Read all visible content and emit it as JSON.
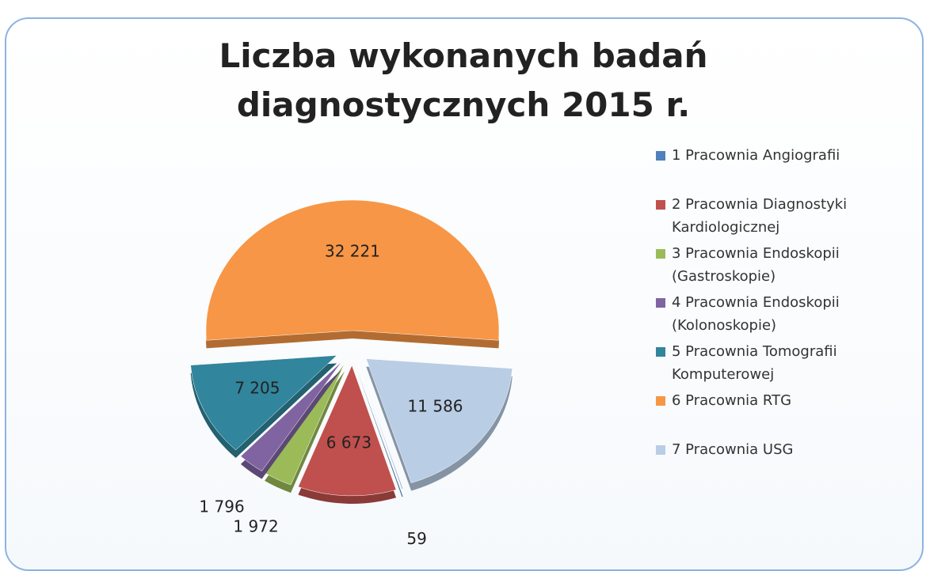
{
  "chart_data": {
    "type": "pie",
    "title": "Liczba wykonanych badań diagnostycznych 2015 r.",
    "categories": [
      "1 Pracownia Angiografii",
      "2 Pracownia Diagnostyki Kardiologicznej",
      "3 Pracownia Endoskopii (Gastroskopie)",
      "4 Pracownia Endoskopii (Kolonoskopie)",
      "5 Pracownia Tomografii Komputerowej",
      "6 Pracownia RTG",
      "7 Pracownia USG"
    ],
    "values": [
      59,
      6673,
      1972,
      1796,
      7205,
      32221,
      11586
    ],
    "value_labels": [
      "59",
      "6 673",
      "1 972",
      "1 796",
      "7 205",
      "32 221",
      "11 586"
    ],
    "colors": [
      "#4f81bd",
      "#c0504d",
      "#9bbb59",
      "#8064a2",
      "#31859c",
      "#f79646",
      "#b9cde5"
    ],
    "legend": "right"
  }
}
